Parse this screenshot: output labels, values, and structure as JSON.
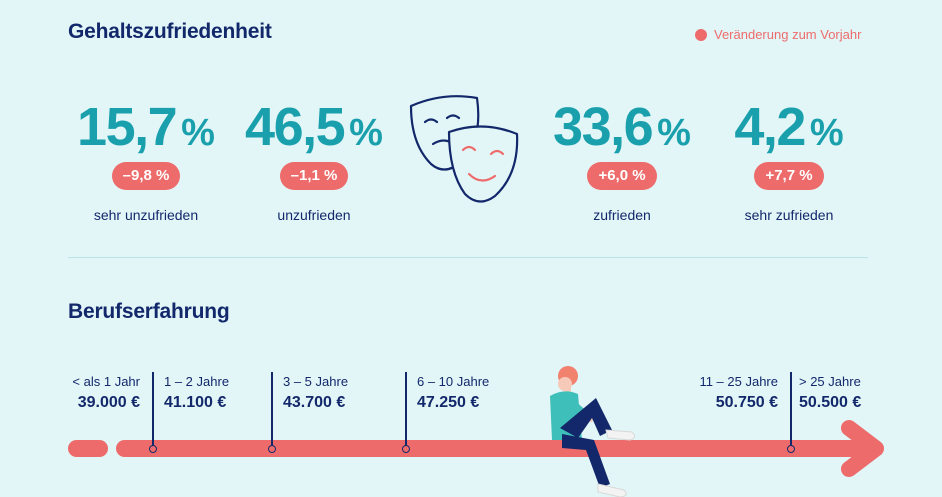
{
  "salary": {
    "title": "Gehaltszufriedenheit",
    "legend": "Veränderung zum Vorjahr",
    "stats": [
      {
        "value": "15,7",
        "unit": "%",
        "change": "–9,8 %",
        "label": "sehr unzufrieden"
      },
      {
        "value": "46,5",
        "unit": "%",
        "change": "–1,1 %",
        "label": "unzufrieden"
      },
      {
        "value": "33,6",
        "unit": "%",
        "change": "+6,0 %",
        "label": "zufrieden"
      },
      {
        "value": "4,2",
        "unit": "%",
        "change": "+7,7 %",
        "label": "sehr zufrieden"
      }
    ]
  },
  "experience": {
    "title": "Berufserfahrung",
    "items": [
      {
        "years": "< als 1 Jahr",
        "salary": "39.000 €"
      },
      {
        "years": "1 – 2 Jahre",
        "salary": "41.100 €"
      },
      {
        "years": "3 – 5 Jahre",
        "salary": "43.700 €"
      },
      {
        "years": "6 – 10 Jahre",
        "salary": "47.250 €"
      },
      {
        "years": "11 – 25 Jahre",
        "salary": "50.750 €"
      },
      {
        "years": "> 25 Jahre",
        "salary": "50.500 €"
      }
    ]
  },
  "colors": {
    "accent": "#ee6b6b",
    "teal": "#1aa0ac",
    "navy": "#13286b",
    "background": "#e2f6f8"
  },
  "icons": [
    "theater-masks-icon",
    "sitting-person-illustration",
    "arrow-timeline"
  ]
}
